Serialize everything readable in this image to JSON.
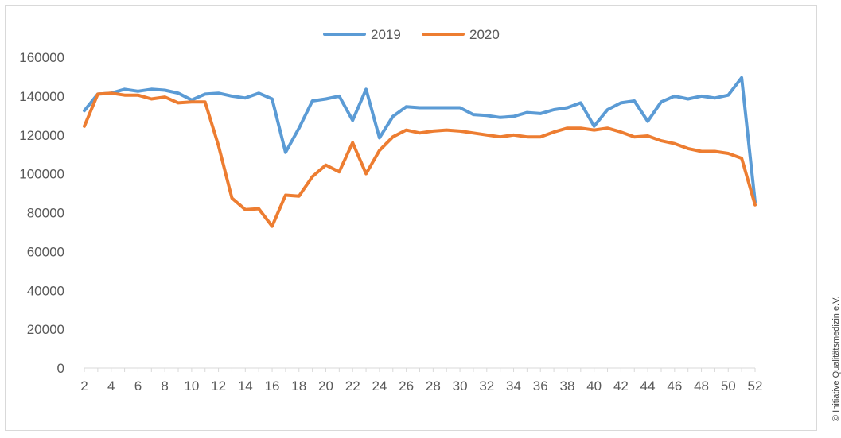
{
  "chart_data": {
    "type": "line",
    "title": "",
    "xlabel": "",
    "ylabel": "",
    "ylim": [
      0,
      160000
    ],
    "yticks": [
      0,
      20000,
      40000,
      60000,
      80000,
      100000,
      120000,
      140000,
      160000
    ],
    "xlim": [
      2,
      52
    ],
    "xticks": [
      2,
      4,
      6,
      8,
      10,
      12,
      14,
      16,
      18,
      20,
      22,
      24,
      26,
      28,
      30,
      32,
      34,
      36,
      38,
      40,
      42,
      44,
      46,
      48,
      50,
      52
    ],
    "x": [
      2,
      3,
      4,
      5,
      6,
      7,
      8,
      9,
      10,
      11,
      12,
      13,
      14,
      15,
      16,
      17,
      18,
      19,
      20,
      21,
      22,
      23,
      24,
      25,
      26,
      27,
      28,
      29,
      30,
      31,
      32,
      33,
      34,
      35,
      36,
      37,
      38,
      39,
      40,
      41,
      42,
      43,
      44,
      45,
      46,
      47,
      48,
      49,
      50,
      51,
      52
    ],
    "grid": false,
    "legend": "top-center",
    "series": [
      {
        "name": "2019",
        "color": "#5b9bd5",
        "values": [
          132500,
          141000,
          141500,
          143500,
          142500,
          143500,
          143000,
          141500,
          138000,
          141000,
          141500,
          140000,
          139000,
          141500,
          138500,
          111000,
          123500,
          137500,
          138500,
          140000,
          127500,
          143500,
          118500,
          129500,
          134500,
          134000,
          134000,
          134000,
          134000,
          130500,
          130000,
          129000,
          129500,
          131500,
          131000,
          133000,
          134000,
          136500,
          124500,
          133000,
          136500,
          137500,
          127000,
          137000,
          140000,
          138500,
          140000,
          139000,
          140500,
          149500,
          85500
        ]
      },
      {
        "name": "2020",
        "color": "#ed7d31",
        "values": [
          124500,
          141000,
          141500,
          140500,
          140500,
          138500,
          139500,
          136500,
          137000,
          137000,
          114500,
          87500,
          81500,
          82000,
          73000,
          89000,
          88500,
          98500,
          104500,
          101000,
          116000,
          100000,
          112000,
          119000,
          122500,
          121000,
          122000,
          122500,
          122000,
          121000,
          120000,
          119000,
          120000,
          119000,
          119000,
          121500,
          123500,
          123500,
          122500,
          123500,
          121500,
          119000,
          119500,
          117000,
          115500,
          113000,
          111500,
          111500,
          110500,
          108000,
          84000
        ]
      }
    ]
  },
  "copyright": "© Initiative Qualitätsmedizin e.V."
}
